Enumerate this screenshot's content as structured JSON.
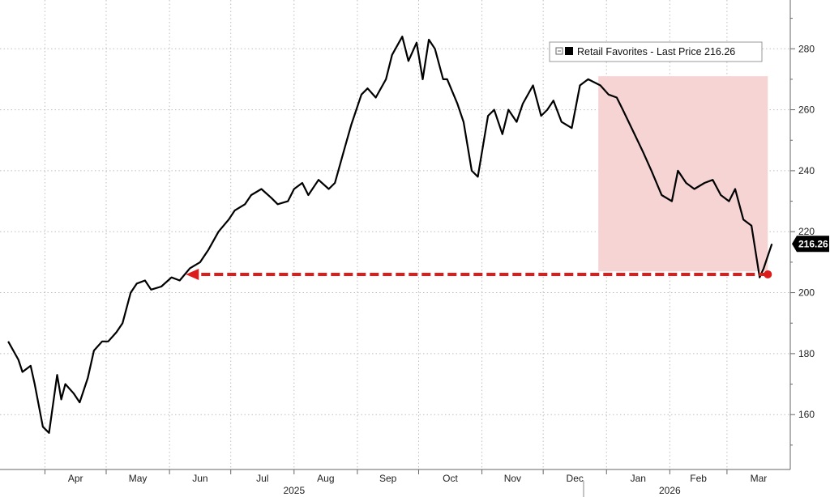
{
  "chart_data": {
    "type": "line",
    "title": "",
    "xlabel": "",
    "ylabel": "",
    "ylim": [
      142,
      296
    ],
    "y_ticks": [
      160,
      180,
      200,
      220,
      240,
      260,
      280
    ],
    "grid": true,
    "legend_position": "top-right",
    "x_month_labels": [
      "Apr",
      "May",
      "Jun",
      "Jul",
      "Aug",
      "Sep",
      "Oct",
      "Nov",
      "Dec",
      "Jan",
      "Feb",
      "Mar"
    ],
    "year_labels": [
      "2025",
      "2026"
    ],
    "series": [
      {
        "name": "Retail Favorites - Last Price",
        "color": "#000000",
        "x": [
          "2025-03-14",
          "2025-03-19",
          "2025-03-21",
          "2025-03-25",
          "2025-03-27",
          "2025-03-31",
          "2025-04-03",
          "2025-04-07",
          "2025-04-09",
          "2025-04-11",
          "2025-04-15",
          "2025-04-18",
          "2025-04-22",
          "2025-04-25",
          "2025-04-29",
          "2025-05-02",
          "2025-05-06",
          "2025-05-09",
          "2025-05-13",
          "2025-05-16",
          "2025-05-20",
          "2025-05-23",
          "2025-05-28",
          "2025-06-02",
          "2025-06-06",
          "2025-06-11",
          "2025-06-16",
          "2025-06-20",
          "2025-06-25",
          "2025-06-30",
          "2025-07-03",
          "2025-07-08",
          "2025-07-11",
          "2025-07-16",
          "2025-07-21",
          "2025-07-24",
          "2025-07-29",
          "2025-08-01",
          "2025-08-05",
          "2025-08-08",
          "2025-08-13",
          "2025-08-18",
          "2025-08-21",
          "2025-08-26",
          "2025-08-29",
          "2025-09-03",
          "2025-09-06",
          "2025-09-10",
          "2025-09-15",
          "2025-09-18",
          "2025-09-23",
          "2025-09-26",
          "2025-09-30",
          "2025-10-03",
          "2025-10-06",
          "2025-10-09",
          "2025-10-13",
          "2025-10-15",
          "2025-10-20",
          "2025-10-23",
          "2025-10-27",
          "2025-10-30",
          "2025-11-04",
          "2025-11-07",
          "2025-11-11",
          "2025-11-14",
          "2025-11-18",
          "2025-11-21",
          "2025-11-26",
          "2025-11-30",
          "2025-12-03",
          "2025-12-06",
          "2025-12-10",
          "2025-12-15",
          "2025-12-19",
          "2025-12-23",
          "2025-12-29",
          "2026-01-02",
          "2026-01-06",
          "2026-01-09",
          "2026-01-14",
          "2026-01-19",
          "2026-01-23",
          "2026-01-28",
          "2026-02-02",
          "2026-02-05",
          "2026-02-09",
          "2026-02-13",
          "2026-02-18",
          "2026-02-22",
          "2026-02-26",
          "2026-03-02",
          "2026-03-05",
          "2026-03-09",
          "2026-03-13",
          "2026-03-17",
          "2026-03-19",
          "2026-03-23"
        ],
        "values": [
          184,
          178,
          174,
          176,
          170,
          156,
          154,
          173,
          165,
          170,
          167,
          164,
          172,
          181,
          184,
          184,
          187,
          190,
          200,
          203,
          204,
          201,
          202,
          205,
          204,
          208,
          210,
          214,
          220,
          224,
          227,
          229,
          232,
          234,
          231,
          229,
          230,
          234,
          236,
          232,
          237,
          234,
          236,
          248,
          255,
          265,
          267,
          264,
          270,
          278,
          284,
          276,
          282,
          270,
          283,
          280,
          270,
          270,
          262,
          256,
          240,
          238,
          258,
          260,
          252,
          260,
          256,
          262,
          268,
          258,
          260,
          263,
          256,
          254,
          268,
          270,
          268,
          265,
          264,
          260,
          253,
          246,
          240,
          232,
          230,
          240,
          236,
          234,
          236,
          237,
          232,
          230,
          234,
          224,
          222,
          205,
          208,
          216
        ]
      }
    ],
    "annotations": {
      "legend_label": "Retail Favorites - Last Price",
      "legend_value": "216.26",
      "last_price_label": "216.26",
      "shaded_region": {
        "x_start": "2025-12-28",
        "x_end": "2026-03-21",
        "y_top": 271,
        "y_bottom": 207,
        "color": "#f7d4d4"
      },
      "red_arrow": {
        "from_x": "2026-03-21",
        "to_x": "2025-06-09",
        "y": 206,
        "color": "#dd1c1c"
      }
    }
  }
}
